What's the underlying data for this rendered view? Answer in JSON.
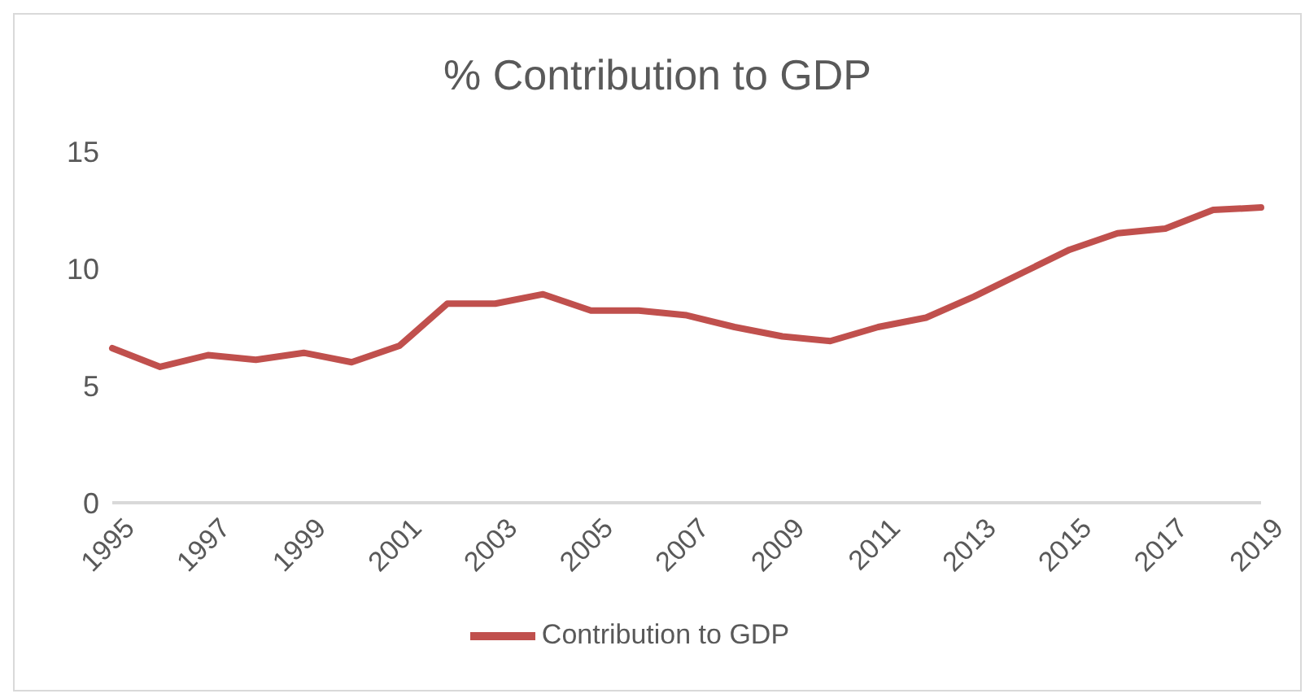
{
  "chart_data": {
    "type": "line",
    "title": "% Contribution to GDP",
    "categories": [
      "1995",
      null,
      "1997",
      null,
      "1999",
      null,
      "2001",
      null,
      "2003",
      null,
      "2005",
      null,
      "2007",
      null,
      "2009",
      null,
      "2011",
      null,
      "2013",
      null,
      "2015",
      null,
      "2017",
      null,
      "2019"
    ],
    "series": [
      {
        "name": "Contribution to GDP",
        "color": "#c0504d",
        "values": [
          6.6,
          5.8,
          6.3,
          6.1,
          6.4,
          6.0,
          6.7,
          8.5,
          8.5,
          8.9,
          8.2,
          8.2,
          8.0,
          7.5,
          7.1,
          6.9,
          7.5,
          7.9,
          8.8,
          9.8,
          10.8,
          11.5,
          11.7,
          12.5,
          12.6
        ]
      }
    ],
    "ylim": [
      0,
      15
    ],
    "yticks": [
      0,
      5,
      10,
      15
    ],
    "grid": false,
    "legend": "bottom",
    "marker": "none",
    "line_style": "solid"
  }
}
